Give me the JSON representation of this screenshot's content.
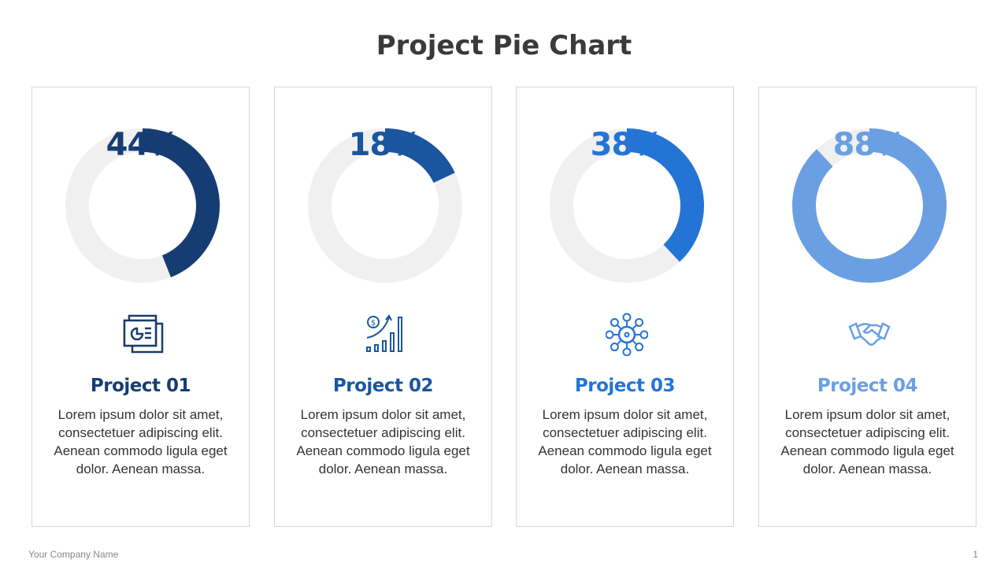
{
  "title": "Project Pie Chart",
  "footer": {
    "company": "Your Company  Name",
    "page": "1"
  },
  "chart_data": [
    {
      "type": "pie",
      "variant": "donut",
      "label": "44%",
      "value": 44,
      "name": "Project 01",
      "color": "#163d73",
      "track_color": "#f0f0f0",
      "icon": "presentation-chart-icon",
      "description": "Lorem ipsum dolor sit amet, consectetuer adipiscing elit. Aenean commodo ligula eget dolor. Aenean massa."
    },
    {
      "type": "pie",
      "variant": "donut",
      "label": "18%",
      "value": 18,
      "name": "Project 02",
      "color": "#1a56a0",
      "track_color": "#f0f0f0",
      "icon": "money-growth-icon",
      "description": "Lorem ipsum dolor sit amet, consectetuer adipiscing elit. Aenean commodo ligula eget dolor. Aenean massa."
    },
    {
      "type": "pie",
      "variant": "donut",
      "label": "38%",
      "value": 38,
      "name": "Project 03",
      "color": "#2474d6",
      "track_color": "#f0f0f0",
      "icon": "network-hub-icon",
      "description": "Lorem ipsum dolor sit amet, consectetuer adipiscing elit. Aenean commodo ligula eget dolor. Aenean massa."
    },
    {
      "type": "pie",
      "variant": "donut",
      "label": "88%",
      "value": 88,
      "name": "Project 04",
      "color": "#6a9fe3",
      "track_color": "#f0f0f0",
      "icon": "handshake-icon",
      "description": "Lorem ipsum dolor sit amet, consectetuer adipiscing elit. Aenean commodo ligula eget dolor. Aenean massa."
    }
  ]
}
